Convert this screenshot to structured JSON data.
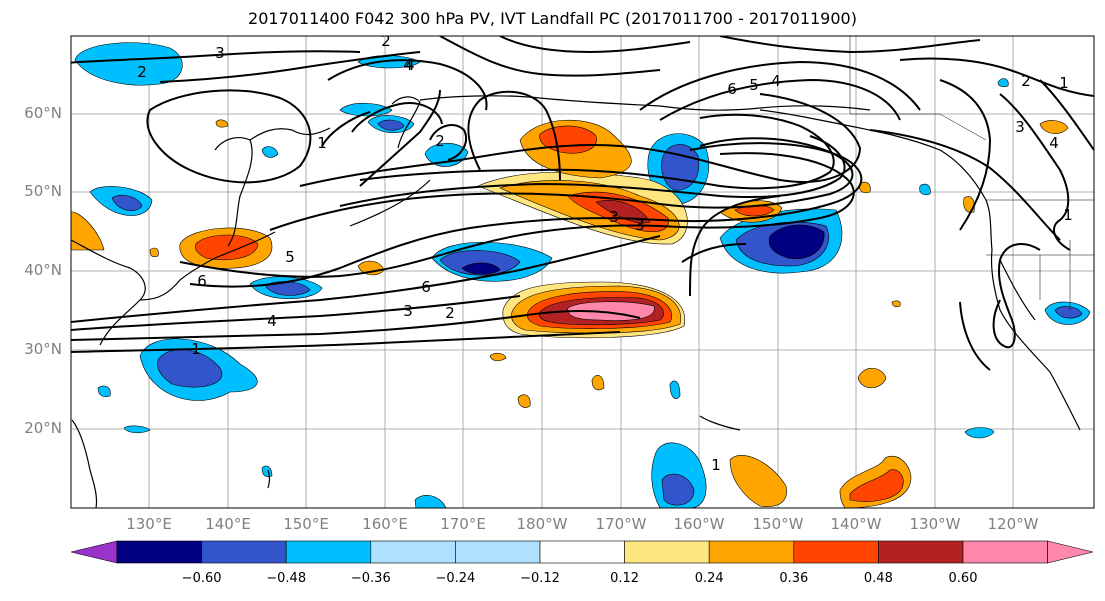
{
  "title": "2017011400 F042 300 hPa PV, IVT Landfall PC (2017011700 - 2017011900)",
  "lat_labels": [
    "60°N",
    "50°N",
    "40°N",
    "30°N",
    "20°N"
  ],
  "lon_labels": [
    "130°E",
    "140°E",
    "150°E",
    "160°E",
    "170°E",
    "180°W",
    "170°W",
    "160°W",
    "150°W",
    "140°W",
    "130°W",
    "120°W"
  ],
  "colorbar": {
    "ticks": [
      "−0.60",
      "−0.48",
      "−0.36",
      "−0.24",
      "−0.12",
      "0.12",
      "0.24",
      "0.36",
      "0.48",
      "0.60"
    ],
    "colors": [
      "#9933cc",
      "#000080",
      "#3355cc",
      "#00bfff",
      "#b0e0ff",
      "#ffffff",
      "#ffe680",
      "#ffa500",
      "#ff4500",
      "#b22222",
      "#ff88aa"
    ]
  },
  "contour_labels": [
    "3",
    "2",
    "4",
    "2",
    "1",
    "6",
    "5",
    "4",
    "3",
    "3",
    "4",
    "5",
    "6",
    "4",
    "3",
    "2",
    "1",
    "1",
    "3",
    "6",
    "2",
    "1",
    "4",
    "2",
    "1"
  ]
}
